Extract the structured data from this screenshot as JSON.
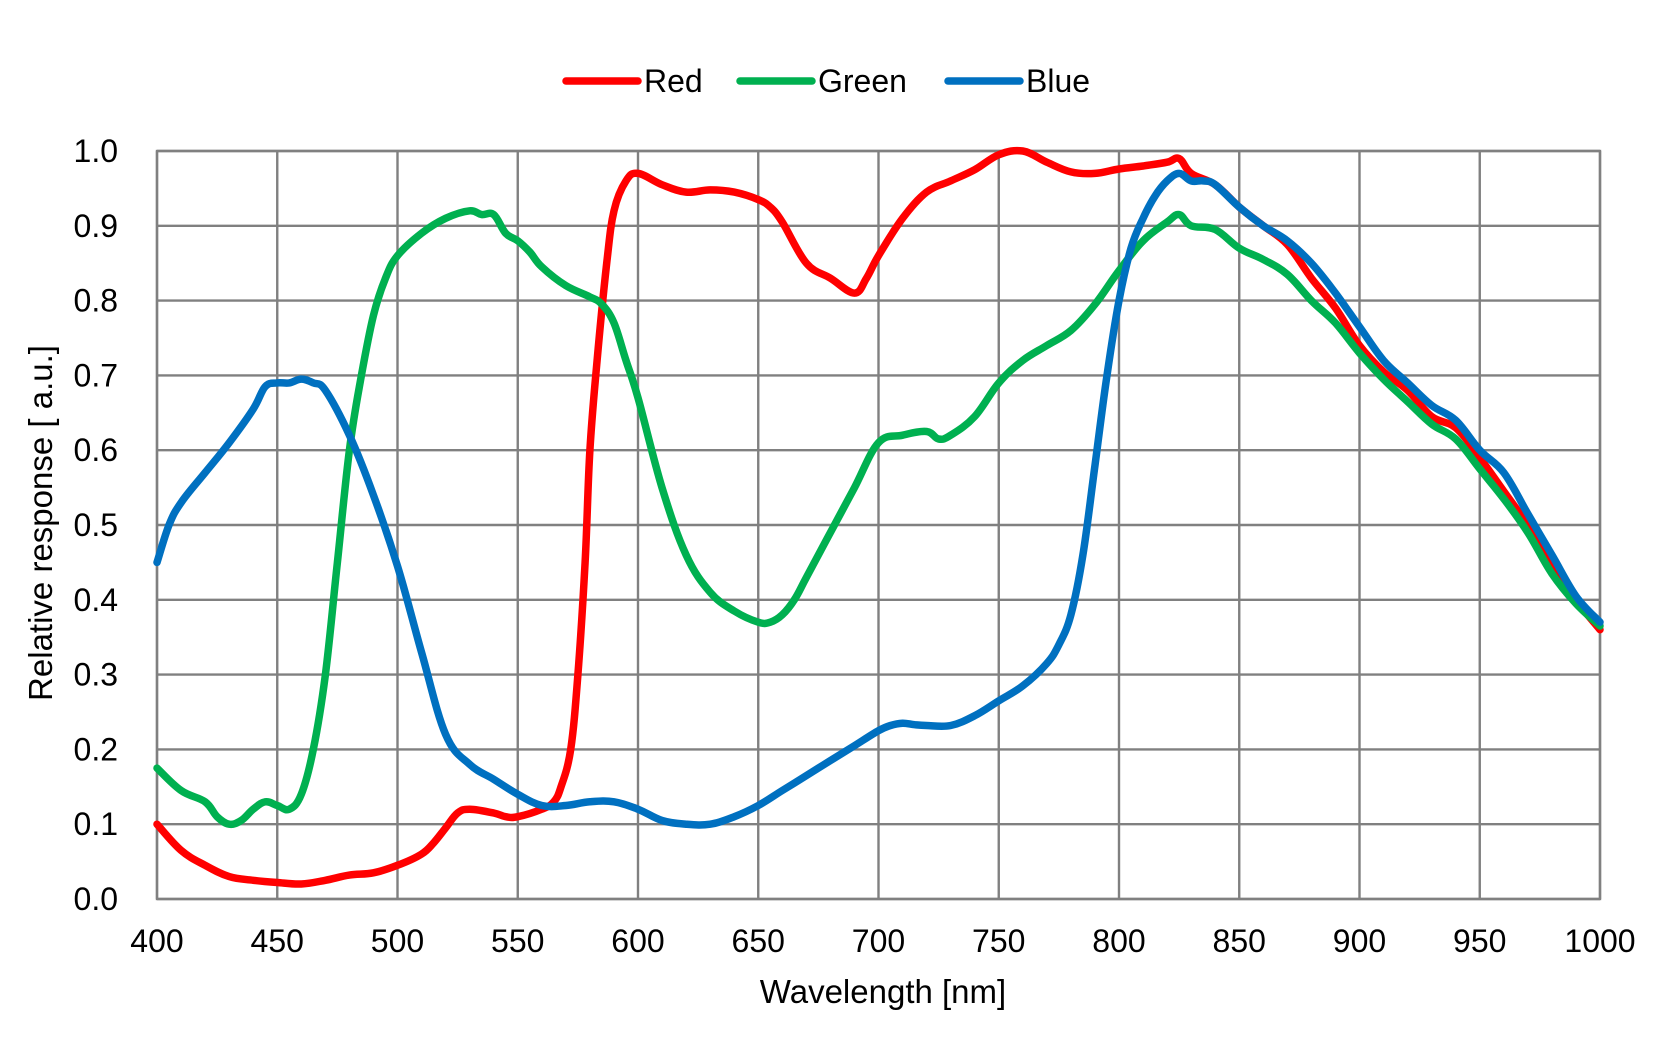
{
  "chart_data": {
    "type": "line",
    "title": "",
    "xlabel": "Wavelength [nm]",
    "ylabel": "Relative response [ a.u.]",
    "xlim": [
      400,
      1000
    ],
    "ylim": [
      0.0,
      1.0
    ],
    "xticks": [
      400,
      450,
      500,
      550,
      600,
      650,
      700,
      750,
      800,
      850,
      900,
      950,
      1000
    ],
    "yticks": [
      "0.0",
      "0.1",
      "0.2",
      "0.3",
      "0.4",
      "0.5",
      "0.6",
      "0.7",
      "0.8",
      "0.9",
      "1.0"
    ],
    "grid": true,
    "legend_position": "top-center",
    "series": [
      {
        "name": "Red",
        "color": "#ff0000",
        "x": [
          400,
          410,
          420,
          430,
          440,
          450,
          460,
          470,
          480,
          490,
          500,
          510,
          515,
          520,
          525,
          530,
          540,
          545,
          550,
          560,
          565,
          568,
          572,
          575,
          578,
          580,
          583,
          587,
          590,
          595,
          600,
          610,
          620,
          630,
          640,
          650,
          655,
          660,
          670,
          680,
          690,
          695,
          700,
          710,
          720,
          730,
          740,
          750,
          760,
          770,
          780,
          790,
          800,
          810,
          820,
          825,
          830,
          840,
          850,
          860,
          870,
          880,
          890,
          900,
          910,
          920,
          930,
          940,
          950,
          960,
          970,
          980,
          990,
          1000
        ],
        "y": [
          0.1,
          0.065,
          0.045,
          0.03,
          0.025,
          0.022,
          0.02,
          0.025,
          0.032,
          0.035,
          0.045,
          0.06,
          0.075,
          0.095,
          0.115,
          0.12,
          0.115,
          0.11,
          0.11,
          0.12,
          0.13,
          0.15,
          0.2,
          0.3,
          0.45,
          0.6,
          0.72,
          0.85,
          0.92,
          0.96,
          0.97,
          0.955,
          0.945,
          0.948,
          0.945,
          0.935,
          0.925,
          0.905,
          0.85,
          0.83,
          0.81,
          0.83,
          0.86,
          0.91,
          0.945,
          0.96,
          0.975,
          0.995,
          1.0,
          0.985,
          0.972,
          0.97,
          0.976,
          0.98,
          0.985,
          0.99,
          0.97,
          0.955,
          0.925,
          0.9,
          0.875,
          0.83,
          0.79,
          0.74,
          0.705,
          0.68,
          0.645,
          0.63,
          0.59,
          0.545,
          0.5,
          0.45,
          0.4,
          0.36
        ]
      },
      {
        "name": "Green",
        "color": "#00b050",
        "x": [
          400,
          410,
          420,
          425,
          430,
          435,
          440,
          445,
          450,
          455,
          460,
          465,
          470,
          475,
          480,
          485,
          490,
          495,
          500,
          510,
          520,
          530,
          535,
          540,
          545,
          550,
          555,
          560,
          570,
          580,
          585,
          590,
          595,
          600,
          610,
          620,
          630,
          640,
          650,
          655,
          660,
          665,
          670,
          680,
          690,
          700,
          710,
          720,
          725,
          730,
          740,
          750,
          760,
          770,
          780,
          790,
          800,
          810,
          820,
          825,
          830,
          840,
          850,
          860,
          870,
          880,
          890,
          900,
          910,
          920,
          930,
          940,
          950,
          960,
          970,
          980,
          990,
          1000
        ],
        "y": [
          0.175,
          0.145,
          0.13,
          0.11,
          0.1,
          0.105,
          0.12,
          0.13,
          0.125,
          0.12,
          0.14,
          0.2,
          0.3,
          0.45,
          0.6,
          0.7,
          0.78,
          0.83,
          0.86,
          0.89,
          0.91,
          0.92,
          0.915,
          0.915,
          0.89,
          0.88,
          0.865,
          0.845,
          0.82,
          0.805,
          0.795,
          0.77,
          0.72,
          0.67,
          0.55,
          0.46,
          0.41,
          0.385,
          0.37,
          0.37,
          0.38,
          0.4,
          0.43,
          0.49,
          0.55,
          0.61,
          0.62,
          0.625,
          0.615,
          0.62,
          0.645,
          0.69,
          0.72,
          0.74,
          0.76,
          0.795,
          0.84,
          0.88,
          0.905,
          0.915,
          0.9,
          0.895,
          0.87,
          0.855,
          0.835,
          0.8,
          0.77,
          0.73,
          0.695,
          0.665,
          0.635,
          0.615,
          0.575,
          0.535,
          0.49,
          0.435,
          0.395,
          0.365
        ]
      },
      {
        "name": "Blue",
        "color": "#0070c0",
        "x": [
          400,
          405,
          410,
          420,
          430,
          440,
          445,
          450,
          455,
          460,
          465,
          470,
          480,
          490,
          500,
          510,
          520,
          530,
          540,
          550,
          560,
          570,
          580,
          590,
          600,
          610,
          620,
          630,
          640,
          650,
          660,
          670,
          680,
          690,
          700,
          705,
          710,
          715,
          720,
          730,
          740,
          750,
          760,
          770,
          775,
          780,
          785,
          790,
          795,
          800,
          805,
          810,
          815,
          820,
          825,
          830,
          835,
          840,
          850,
          860,
          870,
          880,
          890,
          900,
          910,
          920,
          930,
          940,
          950,
          960,
          970,
          980,
          990,
          1000
        ],
        "y": [
          0.45,
          0.5,
          0.53,
          0.57,
          0.61,
          0.655,
          0.685,
          0.69,
          0.69,
          0.695,
          0.69,
          0.68,
          0.62,
          0.54,
          0.445,
          0.33,
          0.22,
          0.18,
          0.16,
          0.14,
          0.125,
          0.125,
          0.13,
          0.13,
          0.12,
          0.105,
          0.1,
          0.1,
          0.11,
          0.125,
          0.145,
          0.165,
          0.185,
          0.205,
          0.225,
          0.232,
          0.235,
          0.233,
          0.232,
          0.232,
          0.245,
          0.265,
          0.285,
          0.315,
          0.34,
          0.38,
          0.46,
          0.58,
          0.7,
          0.8,
          0.87,
          0.91,
          0.94,
          0.96,
          0.97,
          0.96,
          0.96,
          0.955,
          0.925,
          0.9,
          0.88,
          0.85,
          0.81,
          0.765,
          0.72,
          0.69,
          0.66,
          0.64,
          0.6,
          0.57,
          0.515,
          0.46,
          0.405,
          0.37
        ]
      }
    ]
  }
}
